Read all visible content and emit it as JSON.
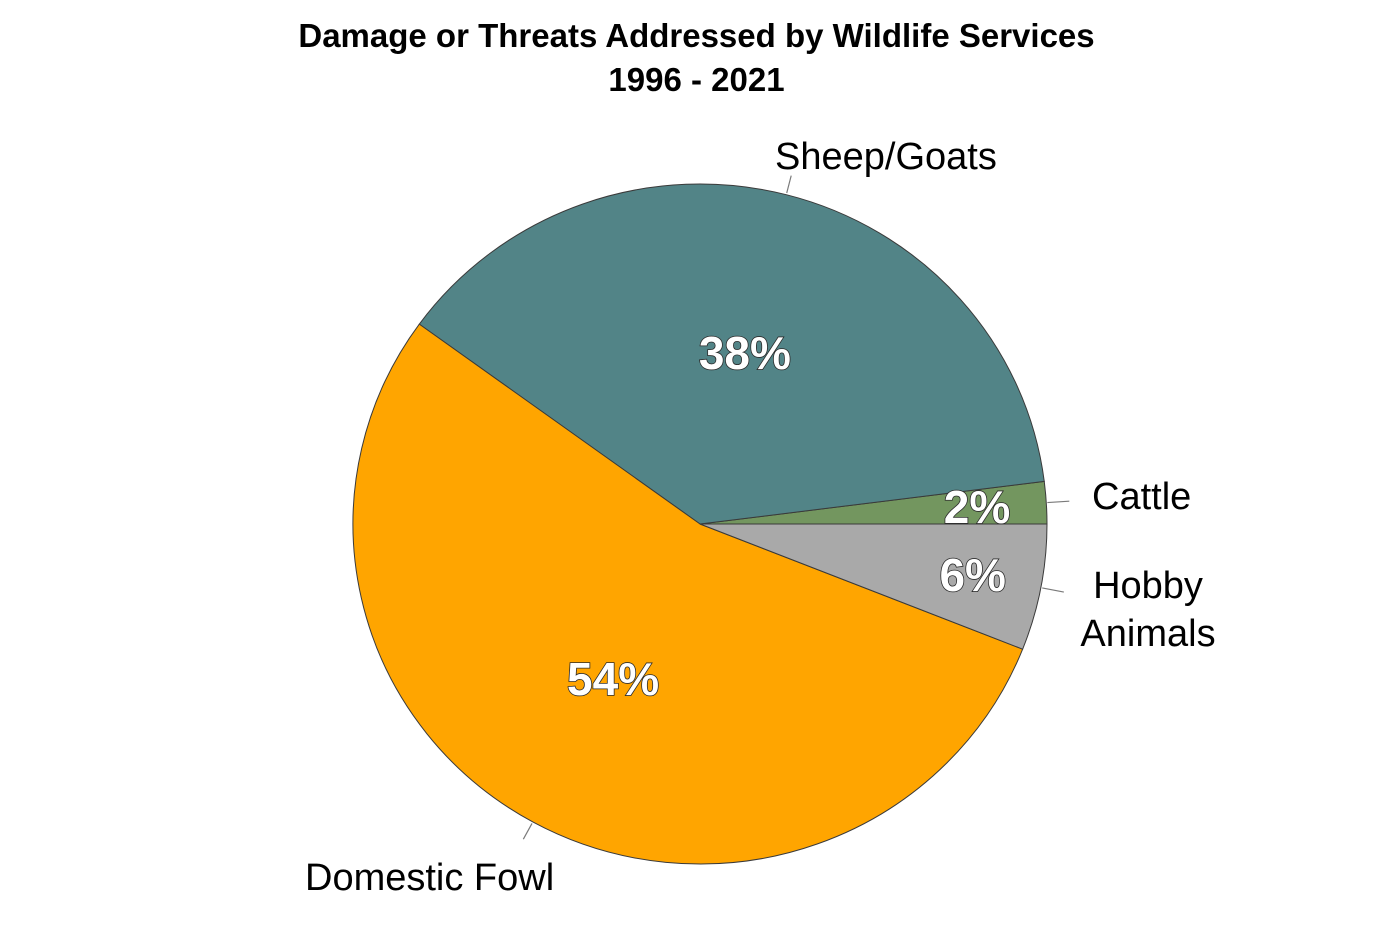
{
  "chart_data": {
    "type": "pie",
    "title": "Damage or Threats Addressed by Wildlife Services",
    "subtitle": "1996 - 2021",
    "slices": [
      {
        "label": [
          "Cattle"
        ],
        "value": 2,
        "percent_label": "2%",
        "color": "#73965f"
      },
      {
        "label": [
          "Sheep/Goats"
        ],
        "value": 38,
        "percent_label": "38%",
        "color": "#528487"
      },
      {
        "label": [
          "Domestic Fowl"
        ],
        "value": 54,
        "percent_label": "54%",
        "color": "#ffa500"
      },
      {
        "label": [
          "Hobby",
          "Animals"
        ],
        "value": 6,
        "percent_label": "6%",
        "color": "#a9a9a9"
      }
    ],
    "start": "3 o'clock",
    "direction": "counterclockwise",
    "legend": "none"
  }
}
